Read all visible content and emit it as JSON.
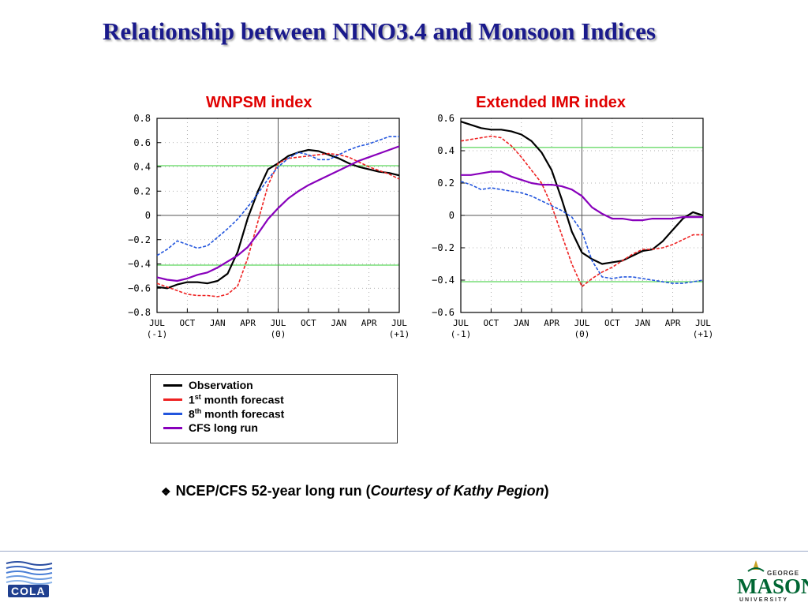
{
  "slide": {
    "title": "Relationship between NINO3.4 and Monsoon Indices",
    "note_prefix": "NCEP/CFS 52-year long run (",
    "note_italic": "Courtesy of Kathy Pegion",
    "note_suffix": ")",
    "note_bullet_icon": "diamond-bullet-icon",
    "logos": {
      "left": "COLA",
      "right_top": "GEORGE",
      "right_main": "MASON",
      "right_bottom": "UNIVERSITY"
    }
  },
  "legend": {
    "items": [
      {
        "label": "Observation",
        "color": "#000000",
        "dash": "solid"
      },
      {
        "label_main": "1",
        "label_sup": "st",
        "label_rest": " month forecast",
        "color": "#ee2222",
        "dash": "dashed"
      },
      {
        "label_main": "8",
        "label_sup": "th",
        "label_rest": " month forecast",
        "color": "#2255dd",
        "dash": "dashed"
      },
      {
        "label": "CFS long run",
        "color": "#8800bb",
        "dash": "solid"
      }
    ]
  },
  "colors": {
    "title": "#1a1a8c",
    "chart_title": "#e00000",
    "observation": "#000000",
    "forecast_1st": "#ee2222",
    "forecast_8th": "#2255dd",
    "cfs_long_run": "#8800bb",
    "reference_lines": "#33cc33",
    "grid": "#999999"
  },
  "chart_data": [
    {
      "type": "line",
      "title": "WNPSM index",
      "xlabel": "",
      "ylabel": "",
      "x_tick_labels": [
        "JUL",
        "OCT",
        "JAN",
        "APR",
        "JUL",
        "OCT",
        "JAN",
        "APR",
        "JUL"
      ],
      "x_tick_sublabels": [
        "(-1)",
        "",
        "",
        "",
        "(0)",
        "",
        "",
        "",
        "(+1)"
      ],
      "x_range_months": [
        0,
        24
      ],
      "ylim": [
        -0.8,
        0.8
      ],
      "y_ticks": [
        -0.8,
        -0.6,
        -0.4,
        -0.2,
        0,
        0.2,
        0.4,
        0.6,
        0.8
      ],
      "y_tick_labels": [
        "−0.8",
        "−0.6",
        "−0.4",
        "−0.2",
        "0",
        "0.2",
        "0.4",
        "0.6",
        "0.8"
      ],
      "grid": "dotted",
      "reference_lines": [
        0.41,
        -0.41
      ],
      "vertical_line_month": 12,
      "series": [
        {
          "name": "Observation",
          "color": "#000000",
          "dash": "solid",
          "x": [
            0,
            1,
            2,
            3,
            4,
            5,
            6,
            7,
            8,
            9,
            10,
            11,
            12,
            13,
            14,
            15,
            16,
            17,
            18,
            19,
            20,
            21,
            22,
            23,
            24
          ],
          "values": [
            -0.59,
            -0.6,
            -0.57,
            -0.55,
            -0.55,
            -0.56,
            -0.54,
            -0.48,
            -0.3,
            -0.02,
            0.2,
            0.38,
            0.43,
            0.49,
            0.52,
            0.54,
            0.53,
            0.5,
            0.47,
            0.43,
            0.4,
            0.38,
            0.36,
            0.35,
            0.33
          ]
        },
        {
          "name": "1st month forecast",
          "color": "#ee2222",
          "dash": "dashed",
          "x": [
            0,
            1,
            2,
            3,
            4,
            5,
            6,
            7,
            8,
            9,
            10,
            11,
            12,
            13,
            14,
            15,
            16,
            17,
            18,
            19,
            20,
            21,
            22,
            23,
            24
          ],
          "values": [
            -0.56,
            -0.59,
            -0.62,
            -0.65,
            -0.66,
            -0.66,
            -0.67,
            -0.65,
            -0.58,
            -0.35,
            -0.05,
            0.25,
            0.43,
            0.47,
            0.48,
            0.49,
            0.5,
            0.51,
            0.5,
            0.48,
            0.44,
            0.4,
            0.37,
            0.34,
            0.3
          ]
        },
        {
          "name": "8th month forecast",
          "color": "#2255dd",
          "dash": "dashed",
          "x": [
            0,
            1,
            2,
            3,
            4,
            5,
            6,
            7,
            8,
            9,
            10,
            11,
            12,
            13,
            14,
            15,
            16,
            17,
            18,
            19,
            20,
            21,
            22,
            23,
            24
          ],
          "values": [
            -0.33,
            -0.28,
            -0.21,
            -0.24,
            -0.27,
            -0.25,
            -0.18,
            -0.11,
            -0.03,
            0.07,
            0.18,
            0.3,
            0.4,
            0.47,
            0.52,
            0.5,
            0.46,
            0.46,
            0.5,
            0.54,
            0.57,
            0.59,
            0.62,
            0.65,
            0.65
          ]
        },
        {
          "name": "CFS long run",
          "color": "#8800bb",
          "dash": "solid",
          "x": [
            0,
            1,
            2,
            3,
            4,
            5,
            6,
            7,
            8,
            9,
            10,
            11,
            12,
            13,
            14,
            15,
            16,
            17,
            18,
            19,
            20,
            21,
            22,
            23,
            24
          ],
          "values": [
            -0.51,
            -0.53,
            -0.54,
            -0.52,
            -0.49,
            -0.47,
            -0.43,
            -0.38,
            -0.33,
            -0.26,
            -0.15,
            -0.03,
            0.06,
            0.14,
            0.2,
            0.25,
            0.29,
            0.33,
            0.37,
            0.41,
            0.45,
            0.48,
            0.51,
            0.54,
            0.57
          ]
        }
      ]
    },
    {
      "type": "line",
      "title": "Extended IMR index",
      "xlabel": "",
      "ylabel": "",
      "x_tick_labels": [
        "JUL",
        "OCT",
        "JAN",
        "APR",
        "JUL",
        "OCT",
        "JAN",
        "APR",
        "JUL"
      ],
      "x_tick_sublabels": [
        "(-1)",
        "",
        "",
        "",
        "(0)",
        "",
        "",
        "",
        "(+1)"
      ],
      "x_range_months": [
        0,
        24
      ],
      "ylim": [
        -0.6,
        0.6
      ],
      "y_ticks": [
        -0.6,
        -0.4,
        -0.2,
        0,
        0.2,
        0.4,
        0.6
      ],
      "y_tick_labels": [
        "−0.6",
        "−0.4",
        "−0.2",
        "0",
        "0.2",
        "0.4",
        "0.6"
      ],
      "grid": "dotted",
      "reference_lines": [
        0.42,
        -0.41
      ],
      "vertical_line_month": 12,
      "series": [
        {
          "name": "Observation",
          "color": "#000000",
          "dash": "solid",
          "x": [
            0,
            1,
            2,
            3,
            4,
            5,
            6,
            7,
            8,
            9,
            10,
            11,
            12,
            13,
            14,
            15,
            16,
            17,
            18,
            19,
            20,
            21,
            22,
            23,
            24
          ],
          "values": [
            0.58,
            0.56,
            0.54,
            0.53,
            0.53,
            0.52,
            0.5,
            0.46,
            0.39,
            0.28,
            0.1,
            -0.1,
            -0.23,
            -0.27,
            -0.3,
            -0.29,
            -0.28,
            -0.25,
            -0.22,
            -0.21,
            -0.16,
            -0.09,
            -0.02,
            0.02,
            0.0
          ]
        },
        {
          "name": "1st month forecast",
          "color": "#ee2222",
          "dash": "dashed",
          "x": [
            0,
            1,
            2,
            3,
            4,
            5,
            6,
            7,
            8,
            9,
            10,
            11,
            12,
            13,
            14,
            15,
            16,
            17,
            18,
            19,
            20,
            21,
            22,
            23,
            24
          ],
          "values": [
            0.46,
            0.47,
            0.48,
            0.49,
            0.48,
            0.43,
            0.36,
            0.28,
            0.2,
            0.06,
            -0.12,
            -0.3,
            -0.44,
            -0.39,
            -0.35,
            -0.32,
            -0.28,
            -0.24,
            -0.21,
            -0.21,
            -0.2,
            -0.18,
            -0.15,
            -0.12,
            -0.12
          ]
        },
        {
          "name": "8th month forecast",
          "color": "#2255dd",
          "dash": "dashed",
          "x": [
            0,
            1,
            2,
            3,
            4,
            5,
            6,
            7,
            8,
            9,
            10,
            11,
            12,
            13,
            14,
            15,
            16,
            17,
            18,
            19,
            20,
            21,
            22,
            23,
            24
          ],
          "values": [
            0.21,
            0.19,
            0.16,
            0.17,
            0.16,
            0.15,
            0.14,
            0.12,
            0.09,
            0.06,
            0.03,
            -0.01,
            -0.1,
            -0.28,
            -0.38,
            -0.39,
            -0.38,
            -0.38,
            -0.39,
            -0.4,
            -0.41,
            -0.42,
            -0.42,
            -0.41,
            -0.4
          ]
        },
        {
          "name": "CFS long run",
          "color": "#8800bb",
          "dash": "solid",
          "x": [
            0,
            1,
            2,
            3,
            4,
            5,
            6,
            7,
            8,
            9,
            10,
            11,
            12,
            13,
            14,
            15,
            16,
            17,
            18,
            19,
            20,
            21,
            22,
            23,
            24
          ],
          "values": [
            0.25,
            0.25,
            0.26,
            0.27,
            0.27,
            0.24,
            0.22,
            0.2,
            0.19,
            0.19,
            0.18,
            0.16,
            0.12,
            0.05,
            0.01,
            -0.02,
            -0.02,
            -0.03,
            -0.03,
            -0.02,
            -0.02,
            -0.02,
            -0.01,
            -0.01,
            -0.01
          ]
        }
      ]
    }
  ]
}
